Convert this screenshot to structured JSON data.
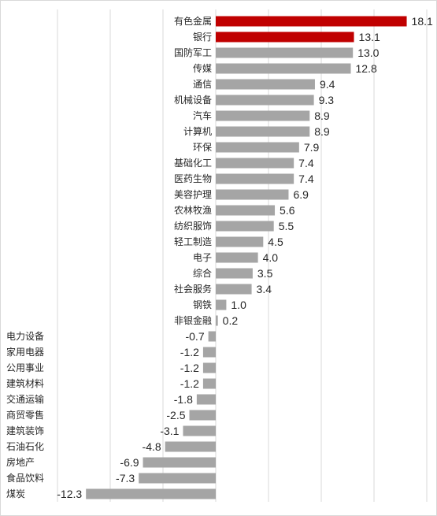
{
  "chart_data": {
    "type": "bar",
    "orientation": "horizontal",
    "categories": [
      "有色金属",
      "银行",
      "国防军工",
      "传媒",
      "通信",
      "机械设备",
      "汽车",
      "计算机",
      "环保",
      "基础化工",
      "医药生物",
      "美容护理",
      "农林牧渔",
      "纺织服饰",
      "轻工制造",
      "电子",
      "综合",
      "社会服务",
      "钢铁",
      "非银金融",
      "电力设备",
      "家用电器",
      "公用事业",
      "建筑材料",
      "交通运输",
      "商贸零售",
      "建筑装饰",
      "石油石化",
      "房地产",
      "食品饮料",
      "煤炭"
    ],
    "values": [
      18.1,
      13.1,
      13.0,
      12.8,
      9.4,
      9.3,
      8.9,
      8.9,
      7.9,
      7.4,
      7.4,
      6.9,
      5.6,
      5.5,
      4.5,
      4.0,
      3.5,
      3.4,
      1.0,
      0.2,
      -0.7,
      -1.2,
      -1.2,
      -1.2,
      -1.8,
      -2.5,
      -3.1,
      -4.8,
      -6.9,
      -7.3,
      -12.3
    ],
    "value_labels": [
      "18.1",
      "13.1",
      "13.0",
      "12.8",
      "9.4",
      "9.3",
      "8.9",
      "8.9",
      "7.9",
      "7.4",
      "7.4",
      "6.9",
      "5.6",
      "5.5",
      "4.5",
      "4.0",
      "3.5",
      "3.4",
      "1.0",
      "0.2",
      "-0.7",
      "-1.2",
      "-1.2",
      "-1.2",
      "-1.8",
      "-2.5",
      "-3.1",
      "-4.8",
      "-6.9",
      "-7.3",
      "-12.3"
    ],
    "highlighted": [
      "有色金属",
      "银行"
    ],
    "xlim": [
      -15,
      20
    ],
    "grid": true,
    "colors": {
      "bar": "#a5a5a5",
      "highlight": "#c00000",
      "grid": "#d9d9d9"
    }
  }
}
